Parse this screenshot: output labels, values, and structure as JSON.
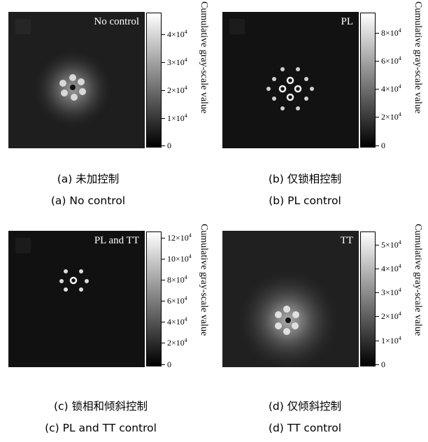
{
  "colorbar_label": "Cumulative gray-scale value",
  "panels": [
    {
      "image_label": "No control",
      "ticks": [
        {
          "pre": "4×10",
          "exp": "4"
        },
        {
          "pre": "3×10",
          "exp": "4"
        },
        {
          "pre": "2×10",
          "exp": "4"
        },
        {
          "pre": "1×10",
          "exp": "4"
        },
        {
          "pre": "0",
          "exp": ""
        }
      ],
      "caption_cn": "(a) 未加控制",
      "caption_en": "(a) No control"
    },
    {
      "image_label": "PL",
      "ticks": [
        {
          "pre": "8×10",
          "exp": "4"
        },
        {
          "pre": "6×10",
          "exp": "4"
        },
        {
          "pre": "4×10",
          "exp": "4"
        },
        {
          "pre": "2×10",
          "exp": "4"
        },
        {
          "pre": "0",
          "exp": ""
        }
      ],
      "caption_cn": "(b) 仅锁相控制",
      "caption_en": "(b) PL control"
    },
    {
      "image_label": "PL and TT",
      "ticks": [
        {
          "pre": "12×10",
          "exp": "4"
        },
        {
          "pre": "10×10",
          "exp": "4"
        },
        {
          "pre": "8×10",
          "exp": "4"
        },
        {
          "pre": "6×10",
          "exp": "4"
        },
        {
          "pre": "4×10",
          "exp": "4"
        },
        {
          "pre": "2×10",
          "exp": "4"
        },
        {
          "pre": "0",
          "exp": ""
        }
      ],
      "caption_cn": "(c) 锁相和倾斜控制",
      "caption_en": "(c) PL and TT control"
    },
    {
      "image_label": "TT",
      "ticks": [
        {
          "pre": "5×10",
          "exp": "4"
        },
        {
          "pre": "4×10",
          "exp": "4"
        },
        {
          "pre": "3×10",
          "exp": "4"
        },
        {
          "pre": "2×10",
          "exp": "4"
        },
        {
          "pre": "1×10",
          "exp": "4"
        },
        {
          "pre": "0",
          "exp": ""
        }
      ],
      "caption_cn": "(d) 仅倾斜控制",
      "caption_en": "(d) TT control"
    }
  ]
}
